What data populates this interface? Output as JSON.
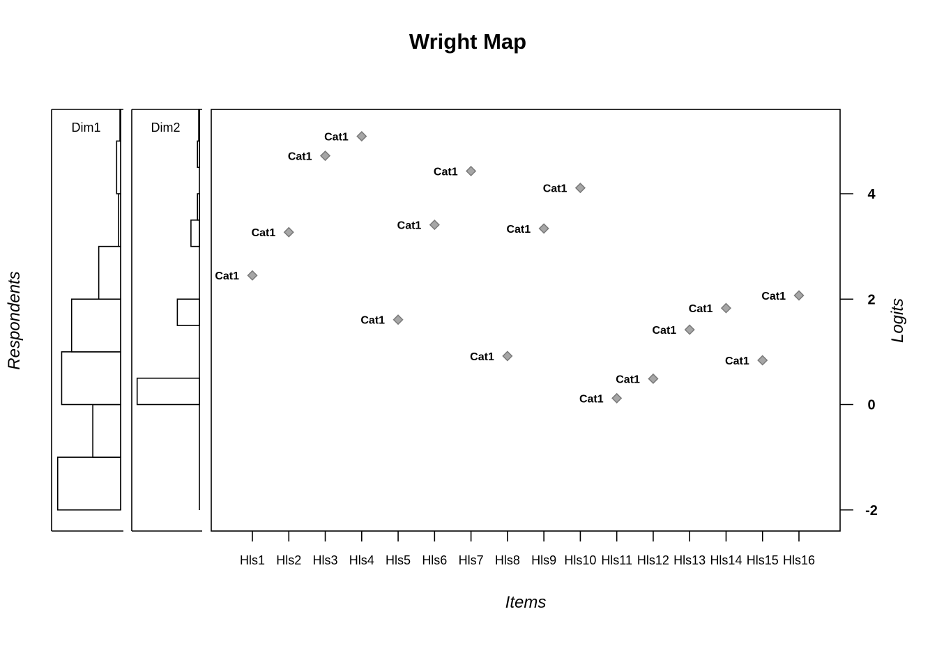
{
  "chart_data": {
    "type": "scatter",
    "title": "Wright Map",
    "xlabel": "Items",
    "ylabel_left": "Respondents",
    "ylabel_right": "Logits",
    "ylim": [
      -2.4,
      5.6
    ],
    "yticks": [
      -2,
      0,
      2,
      4
    ],
    "categories": [
      "Hls1",
      "Hls2",
      "Hls3",
      "Hls4",
      "Hls5",
      "Hls6",
      "Hls7",
      "Hls8",
      "Hls9",
      "Hls10",
      "Hls11",
      "Hls12",
      "Hls13",
      "Hls14",
      "Hls15",
      "Hls16"
    ],
    "series": [
      {
        "name": "Cat1",
        "point_label": "Cat1",
        "values": [
          2.45,
          3.27,
          4.72,
          5.09,
          1.61,
          3.41,
          4.43,
          0.92,
          3.34,
          4.11,
          0.12,
          0.49,
          1.42,
          1.83,
          0.84,
          2.07
        ]
      }
    ],
    "respondent_panels": [
      {
        "label": "Dim1",
        "bins": [
          {
            "from": -2.0,
            "to": -1.0,
            "count": 0.95
          },
          {
            "from": -1.0,
            "to": 0.0,
            "count": 0.42
          },
          {
            "from": 0.0,
            "to": 1.0,
            "count": 0.89
          },
          {
            "from": 1.0,
            "to": 2.0,
            "count": 0.74
          },
          {
            "from": 2.0,
            "to": 3.0,
            "count": 0.33
          },
          {
            "from": 3.0,
            "to": 4.0,
            "count": 0.03
          },
          {
            "from": 4.0,
            "to": 5.0,
            "count": 0.06
          },
          {
            "from": 5.0,
            "to": 5.6,
            "count": 0.01
          }
        ]
      },
      {
        "label": "Dim2",
        "bins": [
          {
            "from": 0.0,
            "to": 0.5,
            "count": 0.96
          },
          {
            "from": 0.5,
            "to": 1.5,
            "count": 0.0
          },
          {
            "from": 1.5,
            "to": 2.0,
            "count": 0.34
          },
          {
            "from": 2.0,
            "to": 3.0,
            "count": 0.0
          },
          {
            "from": 3.0,
            "to": 3.5,
            "count": 0.13
          },
          {
            "from": 3.5,
            "to": 4.0,
            "count": 0.03
          },
          {
            "from": 4.5,
            "to": 5.0,
            "count": 0.03
          },
          {
            "from": 5.0,
            "to": 5.6,
            "count": 0.01
          }
        ]
      }
    ]
  }
}
